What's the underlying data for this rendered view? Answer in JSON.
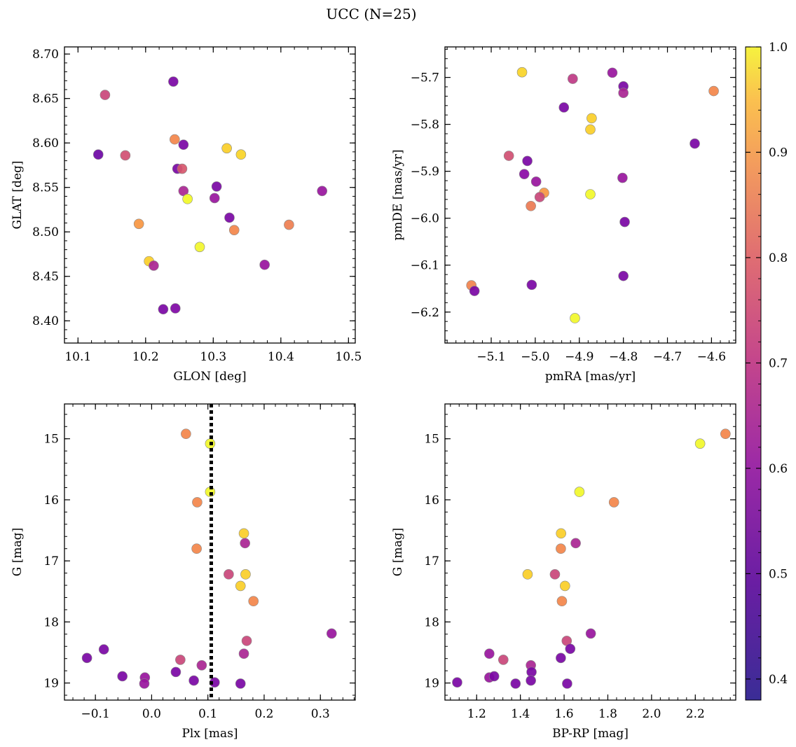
{
  "figure": {
    "title": "UCC (N=25)"
  },
  "colorbar": {
    "range": [
      0.38,
      1.0
    ],
    "ticks": [
      0.4,
      0.5,
      0.6,
      0.7,
      0.8,
      0.9,
      1.0
    ],
    "tick_labels": [
      "0.4",
      "0.5",
      "0.6",
      "0.7",
      "0.8",
      "0.9",
      "1.0"
    ],
    "colormap": "plasma"
  },
  "chart_data": [
    {
      "type": "scatter",
      "xlabel": "GLON [deg]",
      "ylabel": "GLAT [deg]",
      "xlim": [
        10.08,
        10.51
      ],
      "ylim": [
        8.375,
        8.708
      ],
      "yinvert": false,
      "xticks": [
        10.1,
        10.2,
        10.3,
        10.4,
        10.5
      ],
      "xtick_labels": [
        "10.1",
        "10.2",
        "10.3",
        "10.4",
        "10.5"
      ],
      "yticks": [
        8.4,
        8.45,
        8.5,
        8.55,
        8.6,
        8.65,
        8.7
      ],
      "ytick_labels": [
        "8.40",
        "8.45",
        "8.50",
        "8.55",
        "8.60",
        "8.65",
        "8.70"
      ],
      "points": [
        {
          "x": 10.13,
          "y": 8.587,
          "c": 0.4
        },
        {
          "x": 10.14,
          "y": 8.654,
          "c": 0.6
        },
        {
          "x": 10.17,
          "y": 8.586,
          "c": 0.62
        },
        {
          "x": 10.19,
          "y": 8.509,
          "c": 0.78
        },
        {
          "x": 10.205,
          "y": 8.467,
          "c": 0.88
        },
        {
          "x": 10.212,
          "y": 8.462,
          "c": 0.52
        },
        {
          "x": 10.226,
          "y": 8.413,
          "c": 0.42
        },
        {
          "x": 10.241,
          "y": 8.669,
          "c": 0.42
        },
        {
          "x": 10.243,
          "y": 8.604,
          "c": 0.75
        },
        {
          "x": 10.244,
          "y": 8.414,
          "c": 0.43
        },
        {
          "x": 10.247,
          "y": 8.571,
          "c": 0.42
        },
        {
          "x": 10.254,
          "y": 8.571,
          "c": 0.64
        },
        {
          "x": 10.256,
          "y": 8.598,
          "c": 0.42
        },
        {
          "x": 10.256,
          "y": 8.546,
          "c": 0.52
        },
        {
          "x": 10.262,
          "y": 8.537,
          "c": 0.97
        },
        {
          "x": 10.28,
          "y": 8.483,
          "c": 0.99
        },
        {
          "x": 10.302,
          "y": 8.538,
          "c": 0.48
        },
        {
          "x": 10.305,
          "y": 8.551,
          "c": 0.42
        },
        {
          "x": 10.32,
          "y": 8.594,
          "c": 0.88
        },
        {
          "x": 10.324,
          "y": 8.516,
          "c": 0.42
        },
        {
          "x": 10.331,
          "y": 8.502,
          "c": 0.75
        },
        {
          "x": 10.341,
          "y": 8.587,
          "c": 0.89
        },
        {
          "x": 10.376,
          "y": 8.463,
          "c": 0.48
        },
        {
          "x": 10.412,
          "y": 8.508,
          "c": 0.73
        },
        {
          "x": 10.461,
          "y": 8.546,
          "c": 0.48
        }
      ]
    },
    {
      "type": "scatter",
      "xlabel": "pmRA [mas/yr]",
      "ylabel": "pmDE [mas/yr]",
      "xlim": [
        -5.205,
        -4.545
      ],
      "ylim": [
        -6.266,
        -5.635
      ],
      "yinvert": false,
      "xticks": [
        -5.1,
        -5.0,
        -4.9,
        -4.8,
        -4.7,
        -4.6
      ],
      "xtick_labels": [
        "−5.1",
        "−5.0",
        "−4.9",
        "−4.8",
        "−4.7",
        "−4.6"
      ],
      "yticks": [
        -6.2,
        -6.1,
        -6.0,
        -5.9,
        -5.8,
        -5.7
      ],
      "ytick_labels": [
        "−6.2",
        "−6.1",
        "−6.0",
        "−5.9",
        "−5.8",
        "−5.7"
      ],
      "points": [
        {
          "x": -5.03,
          "y": -5.689,
          "c": 0.89
        },
        {
          "x": -4.915,
          "y": -5.703,
          "c": 0.57
        },
        {
          "x": -4.825,
          "y": -5.69,
          "c": 0.48
        },
        {
          "x": -4.8,
          "y": -5.719,
          "c": 0.42
        },
        {
          "x": -4.8,
          "y": -5.733,
          "c": 0.52
        },
        {
          "x": -4.595,
          "y": -5.729,
          "c": 0.75
        },
        {
          "x": -4.935,
          "y": -5.764,
          "c": 0.42
        },
        {
          "x": -4.872,
          "y": -5.787,
          "c": 0.88
        },
        {
          "x": -4.875,
          "y": -5.811,
          "c": 0.88
        },
        {
          "x": -4.638,
          "y": -5.841,
          "c": 0.42
        },
        {
          "x": -5.06,
          "y": -5.867,
          "c": 0.62
        },
        {
          "x": -5.018,
          "y": -5.878,
          "c": 0.42
        },
        {
          "x": -5.025,
          "y": -5.906,
          "c": 0.45
        },
        {
          "x": -4.998,
          "y": -5.922,
          "c": 0.48
        },
        {
          "x": -4.802,
          "y": -5.914,
          "c": 0.48
        },
        {
          "x": -4.98,
          "y": -5.946,
          "c": 0.78
        },
        {
          "x": -4.99,
          "y": -5.955,
          "c": 0.6
        },
        {
          "x": -4.875,
          "y": -5.949,
          "c": 0.98
        },
        {
          "x": -5.01,
          "y": -5.974,
          "c": 0.72
        },
        {
          "x": -4.797,
          "y": -6.008,
          "c": 0.42
        },
        {
          "x": -5.145,
          "y": -6.143,
          "c": 0.74
        },
        {
          "x": -5.138,
          "y": -6.155,
          "c": 0.42
        },
        {
          "x": -5.008,
          "y": -6.142,
          "c": 0.42
        },
        {
          "x": -4.8,
          "y": -6.123,
          "c": 0.42
        },
        {
          "x": -4.91,
          "y": -6.213,
          "c": 0.98
        }
      ]
    },
    {
      "type": "scatter",
      "xlabel": "Plx [mas]",
      "ylabel": "G [mag]",
      "xlim": [
        -0.155,
        0.362
      ],
      "ylim": [
        14.43,
        19.28
      ],
      "yinvert": true,
      "vline": {
        "x": 0.106,
        "style": "dotted"
      },
      "xticks": [
        -0.1,
        0.0,
        0.1,
        0.2,
        0.3
      ],
      "xtick_labels": [
        "−0.1",
        "0.0",
        "0.1",
        "0.2",
        "0.3"
      ],
      "yticks": [
        15,
        16,
        17,
        18,
        19
      ],
      "ytick_labels": [
        "15",
        "16",
        "17",
        "18",
        "19"
      ],
      "points": [
        {
          "x": 0.061,
          "y": 14.92,
          "c": 0.75
        },
        {
          "x": 0.104,
          "y": 15.08,
          "c": 0.98
        },
        {
          "x": 0.104,
          "y": 15.87,
          "c": 0.98
        },
        {
          "x": 0.081,
          "y": 16.04,
          "c": 0.75
        },
        {
          "x": 0.164,
          "y": 16.55,
          "c": 0.88
        },
        {
          "x": 0.166,
          "y": 16.71,
          "c": 0.52
        },
        {
          "x": 0.08,
          "y": 16.8,
          "c": 0.75
        },
        {
          "x": 0.137,
          "y": 17.22,
          "c": 0.6
        },
        {
          "x": 0.167,
          "y": 17.22,
          "c": 0.88
        },
        {
          "x": 0.158,
          "y": 17.41,
          "c": 0.88
        },
        {
          "x": 0.181,
          "y": 17.66,
          "c": 0.75
        },
        {
          "x": 0.32,
          "y": 18.19,
          "c": 0.48
        },
        {
          "x": 0.169,
          "y": 18.31,
          "c": 0.6
        },
        {
          "x": 0.164,
          "y": 18.52,
          "c": 0.52
        },
        {
          "x": -0.115,
          "y": 18.59,
          "c": 0.42
        },
        {
          "x": -0.085,
          "y": 18.45,
          "c": 0.42
        },
        {
          "x": 0.051,
          "y": 18.62,
          "c": 0.6
        },
        {
          "x": 0.089,
          "y": 18.71,
          "c": 0.52
        },
        {
          "x": 0.043,
          "y": 18.82,
          "c": 0.42
        },
        {
          "x": -0.052,
          "y": 18.89,
          "c": 0.42
        },
        {
          "x": -0.012,
          "y": 18.91,
          "c": 0.48
        },
        {
          "x": -0.013,
          "y": 19.01,
          "c": 0.48
        },
        {
          "x": 0.075,
          "y": 18.96,
          "c": 0.42
        },
        {
          "x": 0.112,
          "y": 18.99,
          "c": 0.42
        },
        {
          "x": 0.158,
          "y": 19.01,
          "c": 0.42
        }
      ]
    },
    {
      "type": "scatter",
      "xlabel": "BP-RP [mag]",
      "ylabel": "G [mag]",
      "xlim": [
        1.055,
        2.385
      ],
      "ylim": [
        14.43,
        19.28
      ],
      "yinvert": true,
      "xticks": [
        1.2,
        1.4,
        1.6,
        1.8,
        2.0,
        2.2
      ],
      "xtick_labels": [
        "1.2",
        "1.4",
        "1.6",
        "1.8",
        "2.0",
        "2.2"
      ],
      "yticks": [
        15,
        16,
        17,
        18,
        19
      ],
      "ytick_labels": [
        "15",
        "16",
        "17",
        "18",
        "19"
      ],
      "points": [
        {
          "x": 2.338,
          "y": 14.92,
          "c": 0.75
        },
        {
          "x": 2.222,
          "y": 15.08,
          "c": 0.98
        },
        {
          "x": 1.67,
          "y": 15.87,
          "c": 0.98
        },
        {
          "x": 1.828,
          "y": 16.04,
          "c": 0.75
        },
        {
          "x": 1.586,
          "y": 16.55,
          "c": 0.88
        },
        {
          "x": 1.653,
          "y": 16.71,
          "c": 0.52
        },
        {
          "x": 1.585,
          "y": 16.8,
          "c": 0.75
        },
        {
          "x": 1.433,
          "y": 17.22,
          "c": 0.88
        },
        {
          "x": 1.558,
          "y": 17.22,
          "c": 0.6
        },
        {
          "x": 1.604,
          "y": 17.41,
          "c": 0.88
        },
        {
          "x": 1.59,
          "y": 17.66,
          "c": 0.75
        },
        {
          "x": 1.722,
          "y": 18.19,
          "c": 0.48
        },
        {
          "x": 1.612,
          "y": 18.31,
          "c": 0.6
        },
        {
          "x": 1.258,
          "y": 18.52,
          "c": 0.48
        },
        {
          "x": 1.585,
          "y": 18.59,
          "c": 0.42
        },
        {
          "x": 1.628,
          "y": 18.44,
          "c": 0.42
        },
        {
          "x": 1.322,
          "y": 18.62,
          "c": 0.6
        },
        {
          "x": 1.448,
          "y": 18.71,
          "c": 0.52
        },
        {
          "x": 1.451,
          "y": 18.82,
          "c": 0.42
        },
        {
          "x": 1.258,
          "y": 18.91,
          "c": 0.48
        },
        {
          "x": 1.28,
          "y": 18.89,
          "c": 0.42
        },
        {
          "x": 1.111,
          "y": 18.99,
          "c": 0.42
        },
        {
          "x": 1.378,
          "y": 19.01,
          "c": 0.42
        },
        {
          "x": 1.448,
          "y": 18.96,
          "c": 0.42
        },
        {
          "x": 1.614,
          "y": 19.01,
          "c": 0.42
        }
      ]
    }
  ]
}
